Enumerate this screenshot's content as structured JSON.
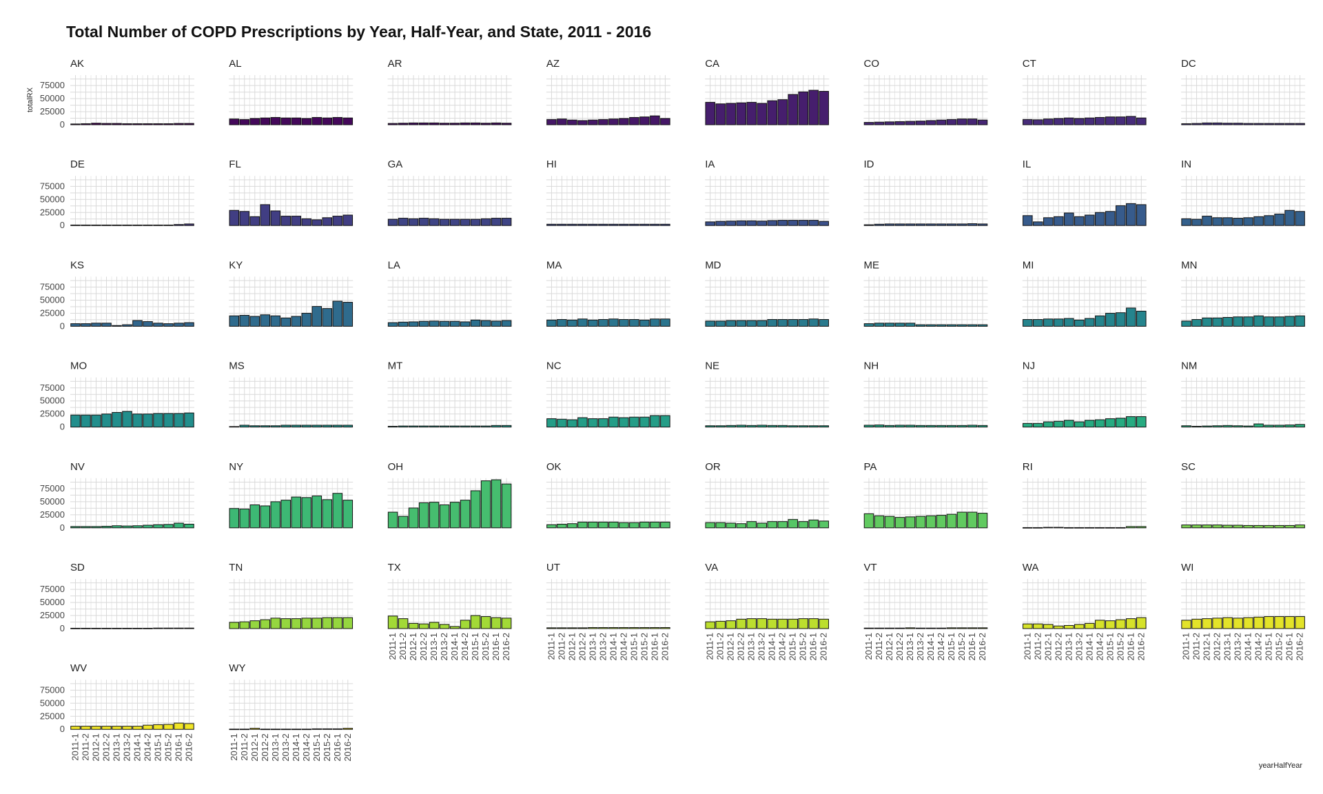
{
  "chart_data": {
    "type": "bar",
    "title": "Total Number of COPD Prescriptions by Year, Half-Year, and State, 2011 - 2016",
    "xlabel": "yearHalfYear",
    "ylabel": "totalRX",
    "y_ticks": [
      "0",
      "25000",
      "50000",
      "75000"
    ],
    "ylim": [
      0,
      95000
    ],
    "grid": true,
    "layout": "facet-wrap 8 columns",
    "categories": [
      "2011-1",
      "2011-2",
      "2012-1",
      "2012-2",
      "2013-1",
      "2013-2",
      "2014-1",
      "2014-2",
      "2015-1",
      "2015-2",
      "2016-1",
      "2016-2"
    ],
    "color_scale": "viridis",
    "facets": [
      {
        "state": "AK",
        "values": [
          1500,
          2000,
          3000,
          2500,
          2500,
          2000,
          2000,
          2000,
          2000,
          2000,
          2500,
          2500
        ]
      },
      {
        "state": "AL",
        "values": [
          11000,
          10000,
          12000,
          13000,
          14000,
          13000,
          13000,
          12000,
          14000,
          13000,
          14000,
          13000
        ]
      },
      {
        "state": "AR",
        "values": [
          2500,
          3000,
          3500,
          3500,
          3500,
          3000,
          3000,
          3500,
          3500,
          3000,
          3500,
          3000
        ]
      },
      {
        "state": "AZ",
        "values": [
          10000,
          11000,
          9000,
          8000,
          9000,
          10000,
          11000,
          12000,
          14000,
          15000,
          17000,
          12000
        ]
      },
      {
        "state": "CA",
        "values": [
          43000,
          40000,
          41000,
          42000,
          43000,
          41000,
          46000,
          48000,
          58000,
          63000,
          66000,
          64000
        ]
      },
      {
        "state": "CO",
        "values": [
          4500,
          5000,
          5500,
          6000,
          6500,
          7000,
          8000,
          9000,
          10000,
          11000,
          11000,
          9000
        ]
      },
      {
        "state": "CT",
        "values": [
          10000,
          9500,
          11000,
          12000,
          13000,
          12000,
          13000,
          14000,
          15000,
          15000,
          16000,
          13000
        ]
      },
      {
        "state": "DC",
        "values": [
          2000,
          2500,
          3500,
          3500,
          3000,
          3000,
          2500,
          2500,
          2500,
          2500,
          2500,
          2500
        ]
      },
      {
        "state": "DE",
        "values": [
          1000,
          1000,
          1000,
          1000,
          1000,
          1000,
          1000,
          1000,
          1000,
          1000,
          2000,
          3000
        ]
      },
      {
        "state": "FL",
        "values": [
          29000,
          27000,
          17000,
          40000,
          28000,
          18000,
          18000,
          13000,
          11000,
          15000,
          18000,
          20000
        ]
      },
      {
        "state": "GA",
        "values": [
          12000,
          14000,
          13000,
          14000,
          13000,
          12000,
          12000,
          12000,
          12000,
          13000,
          14000,
          14000
        ]
      },
      {
        "state": "HI",
        "values": [
          2500,
          2500,
          2500,
          2500,
          2500,
          2500,
          2500,
          2500,
          2500,
          2500,
          2500,
          2500
        ]
      },
      {
        "state": "IA",
        "values": [
          7000,
          8000,
          8500,
          9000,
          9000,
          8500,
          9500,
          10000,
          10000,
          10000,
          10000,
          8000
        ]
      },
      {
        "state": "ID",
        "values": [
          1500,
          2500,
          3000,
          3000,
          3000,
          3000,
          3000,
          3000,
          3000,
          3000,
          3500,
          3000
        ]
      },
      {
        "state": "IL",
        "values": [
          19000,
          7000,
          15000,
          17000,
          24000,
          17000,
          20000,
          25000,
          27000,
          38000,
          42000,
          40000
        ]
      },
      {
        "state": "IN",
        "values": [
          13000,
          12000,
          18000,
          15000,
          15000,
          14000,
          15000,
          17000,
          19000,
          22000,
          29000,
          27000
        ]
      },
      {
        "state": "KS",
        "values": [
          5000,
          5000,
          6000,
          6000,
          1500,
          3000,
          11000,
          9000,
          6000,
          5000,
          6000,
          7000
        ]
      },
      {
        "state": "KY",
        "values": [
          20000,
          21000,
          19000,
          22000,
          20000,
          16000,
          19000,
          25000,
          38000,
          34000,
          48000,
          46000
        ]
      },
      {
        "state": "LA",
        "values": [
          7000,
          8000,
          8500,
          9500,
          10000,
          9500,
          9500,
          8500,
          12000,
          11000,
          10000,
          11000
        ]
      },
      {
        "state": "MA",
        "values": [
          12000,
          13000,
          12000,
          14000,
          12000,
          13000,
          14000,
          13000,
          13000,
          12000,
          14000,
          14000
        ]
      },
      {
        "state": "MD",
        "values": [
          10000,
          10000,
          11000,
          11000,
          11000,
          11000,
          13000,
          13000,
          13000,
          13000,
          14000,
          13000
        ]
      },
      {
        "state": "ME",
        "values": [
          5000,
          6000,
          6000,
          6000,
          6000,
          3000,
          3000,
          3000,
          3000,
          3000,
          3000,
          3000
        ]
      },
      {
        "state": "MI",
        "values": [
          13000,
          13000,
          14000,
          14000,
          15000,
          12000,
          15000,
          20000,
          25000,
          26000,
          35000,
          29000
        ]
      },
      {
        "state": "MN",
        "values": [
          10000,
          13000,
          16000,
          16000,
          17000,
          18000,
          18000,
          20000,
          18000,
          18000,
          19000,
          20000
        ]
      },
      {
        "state": "MO",
        "values": [
          23000,
          23000,
          23000,
          25000,
          28000,
          30000,
          25000,
          25000,
          26000,
          26000,
          26000,
          27000
        ]
      },
      {
        "state": "MS",
        "values": [
          1000,
          3500,
          2500,
          2500,
          2500,
          3500,
          3500,
          3500,
          3500,
          3500,
          3500,
          3500
        ]
      },
      {
        "state": "MT",
        "values": [
          1500,
          2000,
          2000,
          2000,
          2000,
          2000,
          2000,
          2000,
          2000,
          2000,
          3000,
          3000
        ]
      },
      {
        "state": "NC",
        "values": [
          16000,
          15000,
          14000,
          18000,
          16000,
          16000,
          19000,
          18000,
          19000,
          19000,
          22000,
          22000
        ]
      },
      {
        "state": "NE",
        "values": [
          2500,
          2500,
          3000,
          3500,
          3000,
          3500,
          3000,
          3000,
          2500,
          2500,
          2500,
          2500
        ]
      },
      {
        "state": "NH",
        "values": [
          3500,
          4000,
          3000,
          3500,
          3500,
          3000,
          3000,
          3000,
          3000,
          3000,
          3500,
          3000
        ]
      },
      {
        "state": "NJ",
        "values": [
          7000,
          7000,
          10000,
          11000,
          13000,
          10000,
          13000,
          14000,
          16000,
          17000,
          20000,
          20000
        ]
      },
      {
        "state": "NM",
        "values": [
          2500,
          1500,
          2000,
          2500,
          3000,
          2500,
          2000,
          6000,
          3500,
          3500,
          4000,
          5000
        ]
      },
      {
        "state": "NV",
        "values": [
          2500,
          2500,
          2500,
          3000,
          4000,
          3500,
          4000,
          5000,
          6000,
          6500,
          9000,
          7000
        ]
      },
      {
        "state": "NY",
        "values": [
          37000,
          36000,
          44000,
          42000,
          50000,
          53000,
          59000,
          58000,
          61000,
          54000,
          66000,
          53000
        ]
      },
      {
        "state": "OH",
        "values": [
          30000,
          22000,
          38000,
          48000,
          49000,
          44000,
          49000,
          53000,
          71000,
          90000,
          92000,
          84000
        ]
      },
      {
        "state": "OK",
        "values": [
          6000,
          7000,
          8000,
          11000,
          11000,
          11000,
          11000,
          10000,
          10000,
          11000,
          11000,
          11000
        ]
      },
      {
        "state": "OR",
        "values": [
          10000,
          10000,
          9000,
          8000,
          12000,
          9000,
          12000,
          12000,
          16000,
          12000,
          15000,
          13000
        ]
      },
      {
        "state": "PA",
        "values": [
          27000,
          23000,
          22000,
          20000,
          21000,
          22000,
          23000,
          24000,
          26000,
          30000,
          30000,
          28000
        ]
      },
      {
        "state": "RI",
        "values": [
          500,
          500,
          1000,
          1000,
          500,
          500,
          500,
          500,
          500,
          500,
          2500,
          2500
        ]
      },
      {
        "state": "SC",
        "values": [
          5500,
          5500,
          5500,
          5500,
          5000,
          5000,
          4500,
          4500,
          4500,
          4500,
          4500,
          5500
        ]
      },
      {
        "state": "SD",
        "values": [
          700,
          700,
          700,
          700,
          700,
          700,
          700,
          700,
          1000,
          1000,
          1000,
          1000
        ]
      },
      {
        "state": "TN",
        "values": [
          12000,
          13000,
          15000,
          17000,
          20000,
          19000,
          19000,
          20000,
          20000,
          21000,
          21000,
          21000
        ]
      },
      {
        "state": "TX",
        "values": [
          24000,
          19000,
          10000,
          9000,
          12000,
          8000,
          4000,
          16000,
          25000,
          23000,
          21000,
          20000
        ]
      },
      {
        "state": "UT",
        "values": [
          1500,
          1500,
          1500,
          1500,
          2000,
          2000,
          2000,
          2000,
          2000,
          2000,
          2000,
          2000
        ]
      },
      {
        "state": "VA",
        "values": [
          13000,
          14000,
          15000,
          18000,
          19000,
          19000,
          18000,
          18000,
          18000,
          19000,
          19000,
          18000
        ]
      },
      {
        "state": "VT",
        "values": [
          1000,
          1000,
          1000,
          1000,
          1500,
          1000,
          1000,
          1000,
          1500,
          1500,
          1500,
          1500
        ]
      },
      {
        "state": "WA",
        "values": [
          9000,
          9000,
          8000,
          5000,
          6000,
          8000,
          10000,
          16000,
          15000,
          17000,
          19000,
          21000
        ]
      },
      {
        "state": "WI",
        "values": [
          16000,
          18000,
          19000,
          20000,
          21000,
          20000,
          21000,
          22000,
          23000,
          23000,
          23000,
          23000
        ]
      },
      {
        "state": "WV",
        "values": [
          6000,
          6000,
          6000,
          6000,
          6000,
          6000,
          6000,
          8000,
          9000,
          9500,
          12000,
          11000
        ]
      },
      {
        "state": "WY",
        "values": [
          500,
          500,
          2000,
          500,
          500,
          500,
          500,
          500,
          1000,
          1000,
          1000,
          2000
        ]
      }
    ]
  }
}
